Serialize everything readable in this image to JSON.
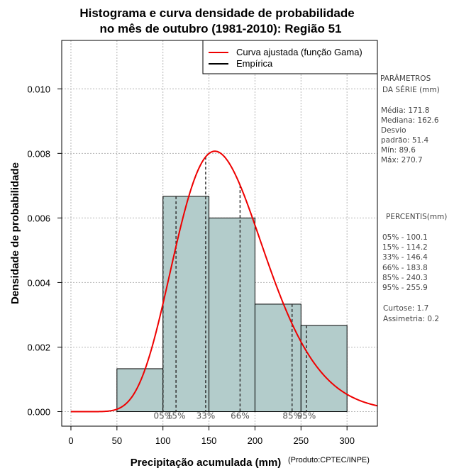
{
  "chart_data": {
    "type": "bar",
    "title_line1": "Histograma e curva densidade de probabilidade",
    "title_line2": "no mês de outubro (1981-2010): Região 51",
    "xlabel": "Precipitação acumulada (mm)",
    "ylabel": "Densidade de probabilidade",
    "credit": "(Produto:CPTEC/INPE)",
    "xlim": [
      -10,
      333
    ],
    "ylim": [
      -0.00045,
      0.0115
    ],
    "x_ticks": [
      0,
      50,
      100,
      150,
      200,
      250,
      300
    ],
    "y_ticks": [
      0.0,
      0.002,
      0.004,
      0.006,
      0.008,
      0.01
    ],
    "y_tick_labels": [
      "0.000",
      "0.002",
      "0.004",
      "0.006",
      "0.008",
      "0.010"
    ],
    "grid": true,
    "histogram": {
      "bin_edges": [
        50,
        100,
        150,
        200,
        250,
        300
      ],
      "densities": [
        0.00133,
        0.00667,
        0.006,
        0.00333,
        0.00267
      ],
      "fill": "#b3cccb"
    },
    "gamma_fit": {
      "mean": 171.8,
      "sd": 51.4,
      "color": "#ee0000"
    },
    "percentiles": [
      {
        "label": "05%",
        "value": 100.1
      },
      {
        "label": "15%",
        "value": 114.2
      },
      {
        "label": "33%",
        "value": 146.4
      },
      {
        "label": "66%",
        "value": 183.8
      },
      {
        "label": "85%",
        "value": 240.3
      },
      {
        "label": "95%",
        "value": 255.9
      }
    ],
    "legend": {
      "position": "top-right",
      "entries": [
        {
          "label": "Curva ajustada (função Gama)",
          "color": "#ee0000"
        },
        {
          "label": "Empírica",
          "color": "#000000"
        }
      ]
    }
  },
  "side_panel": {
    "params_title_1": "PARÂMETROS",
    "params_title_2": "DA SÉRIE (mm)",
    "media": "Média:  171.8",
    "mediana": "Mediana:  162.6",
    "desvio_1": "Desvio",
    "desvio_2": "padrão:  51.4",
    "min": "Mín:  89.6",
    "max": "Máx:  270.7",
    "percentis_title": "PERCENTIS(mm)",
    "p05": "05% -  100.1",
    "p15": "15% -  114.2",
    "p33": "33% -  146.4",
    "p66": "66% -  183.8",
    "p85": "85% -  240.3",
    "p95": "95% -  255.9",
    "curtose": "Curtose:  1.7",
    "assimetria": "Assimetria:  0.2"
  }
}
